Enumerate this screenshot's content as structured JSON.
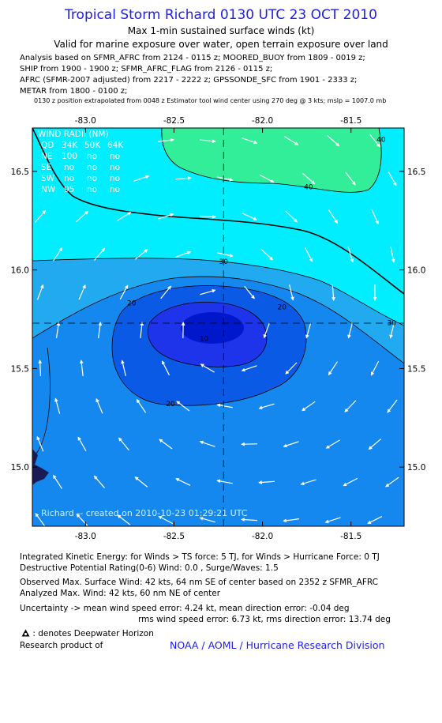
{
  "header": {
    "title": "Tropical Storm Richard 0130 UTC 23 OCT 2010",
    "subtitle1": "Max 1-min sustained surface winds (kt)",
    "subtitle2": "Valid for marine exposure over water, open terrain exposure over land"
  },
  "analysis_lines": [
    "Analysis based on SFMR_AFRC from 2124 - 0115 z; MOORED_BUOY from 1809 - 0019 z;",
    "SHIP from 1900 - 1900 z; SFMR_AFRC_FLAG from 2126 - 0115 z;",
    "AFRC (SFMR-2007 adjusted) from 2217 - 2222 z; GPSSONDE_SFC from 1901 - 2333 z;",
    "METAR from 1800 - 0100 z;"
  ],
  "position_note": "0130 z position extrapolated from 0048 z Estimator tool wind center using 270 deg @ 3 kts; mslp = 1007.0 mb",
  "chart_data": {
    "type": "contour",
    "xlim": [
      -83.3,
      -81.2
    ],
    "ylim": [
      14.7,
      16.72
    ],
    "x_ticks": [
      "-83.0",
      "-82.5",
      "-82.0",
      "-81.5"
    ],
    "y_ticks": [
      "16.5",
      "16.0",
      "15.5",
      "15.0"
    ],
    "x_tick_values": [
      -83.0,
      -82.5,
      -82.0,
      -81.5
    ],
    "y_tick_values": [
      16.5,
      16.0,
      15.5,
      15.0
    ],
    "storm_center": {
      "lon": -82.22,
      "lat": 15.73
    },
    "contour_levels": [
      10,
      20,
      30,
      40
    ],
    "contour_labels": [
      {
        "text": "10",
        "lon": -82.33,
        "lat": 15.64
      },
      {
        "text": "20",
        "lon": -82.74,
        "lat": 15.82
      },
      {
        "text": "20",
        "lon": -81.89,
        "lat": 15.8
      },
      {
        "text": "20",
        "lon": -82.52,
        "lat": 15.31
      },
      {
        "text": "30",
        "lon": -82.22,
        "lat": 16.03
      },
      {
        "text": "30",
        "lon": -81.27,
        "lat": 15.72
      },
      {
        "text": "40",
        "lon": -81.74,
        "lat": 16.41
      },
      {
        "text": "40",
        "lon": -81.33,
        "lat": 16.65
      }
    ],
    "wind_radii": {
      "title": "WIND RADII (NM)",
      "headers": [
        "QD",
        "34K",
        "50K",
        "64K"
      ],
      "rows": [
        [
          "NE",
          "100",
          "no",
          "no"
        ],
        [
          "SE",
          "no",
          "no",
          "no"
        ],
        [
          "SW",
          "no",
          "no",
          "no"
        ],
        [
          "NW",
          "95",
          "no",
          "no"
        ]
      ]
    },
    "creation_label": "Richard -- created on 2010-10-23 01:29:21 UTC",
    "colors": {
      "band_40_plus": "#33ee99",
      "band_30_40": "#00eeff",
      "band_20_30": "#22aaf0",
      "band_10_20": "#1488ee",
      "band_lt20_core": "#0a5ae6",
      "band_lt10": "#1e34ea",
      "core": "#0018cc",
      "land": "#1a1a55"
    }
  },
  "footer": {
    "ike": "Integrated Kinetic Energy:  for Winds > TS force: 5 TJ,  for Winds > Hurricane Force: 0 TJ",
    "dpr": "Destructive Potential Rating(0-6)   Wind: 0.0 , Surge/Waves: 1.5",
    "observed": "Observed Max. Surface Wind: 42 kts, 64 nm SE of center based on 2352 z SFMR_AFRC",
    "analyzed": "Analyzed Max. Wind: 42 kts, 60 nm NE of center",
    "uncertainty1": "Uncertainty -> mean wind speed error: 4.24 kt,   mean direction error:  -0.04 deg",
    "uncertainty2": "rms wind speed error: 6.73 kt,   rms direction error: 13.74 deg",
    "deepwater": ": denotes Deepwater Horizon",
    "research": "Research product of",
    "org": "NOAA / AOML / Hurricane Research Division"
  }
}
